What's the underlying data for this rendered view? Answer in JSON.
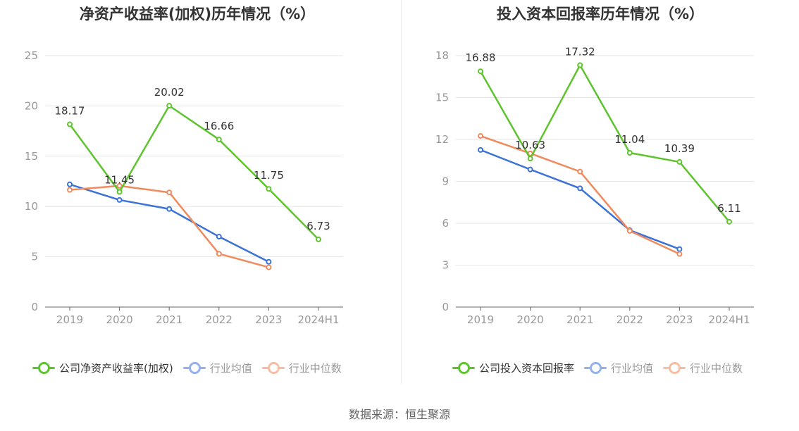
{
  "source": "数据来源：恒生聚源",
  "colors": {
    "company": "#5ec42e",
    "avg": "#3a72d8",
    "median": "#f08a5d"
  },
  "chart_data": [
    {
      "type": "line",
      "title": "净资产收益率(加权)历年情况（%）",
      "categories": [
        "2019",
        "2020",
        "2021",
        "2022",
        "2023",
        "2024H1"
      ],
      "ylim": [
        0,
        25
      ],
      "yticks": [
        0,
        5,
        10,
        15,
        20,
        25
      ],
      "grid": true,
      "legend_position": "bottom",
      "series": [
        {
          "name": "公司净资产收益率(加权)",
          "color": "#5ec42e",
          "values": [
            18.17,
            11.45,
            20.02,
            16.66,
            11.75,
            6.73
          ],
          "labels": [
            "18.17",
            "11.45",
            "20.02",
            "16.66",
            "11.75",
            "6.73"
          ]
        },
        {
          "name": "行业均值",
          "color": "#3a72d8",
          "values": [
            12.2,
            10.65,
            9.75,
            7.0,
            4.5,
            null
          ]
        },
        {
          "name": "行业中位数",
          "color": "#f08a5d",
          "values": [
            11.65,
            12.05,
            11.4,
            5.3,
            3.95,
            null
          ]
        }
      ]
    },
    {
      "type": "line",
      "title": "投入资本回报率历年情况（%）",
      "categories": [
        "2019",
        "2020",
        "2021",
        "2022",
        "2023",
        "2024H1"
      ],
      "ylim": [
        0,
        18
      ],
      "yticks": [
        0,
        3,
        6,
        9,
        12,
        15,
        18
      ],
      "grid": true,
      "legend_position": "bottom",
      "series": [
        {
          "name": "公司投入资本回报率",
          "color": "#5ec42e",
          "values": [
            16.88,
            10.63,
            17.32,
            11.04,
            10.39,
            6.11
          ],
          "labels": [
            "16.88",
            "10.63",
            "17.32",
            "11.04",
            "10.39",
            "6.11"
          ]
        },
        {
          "name": "行业均值",
          "color": "#3a72d8",
          "values": [
            11.25,
            9.85,
            8.5,
            5.5,
            4.15,
            null
          ]
        },
        {
          "name": "行业中位数",
          "color": "#f08a5d",
          "values": [
            12.25,
            11.0,
            9.7,
            5.45,
            3.8,
            null
          ]
        }
      ]
    }
  ]
}
